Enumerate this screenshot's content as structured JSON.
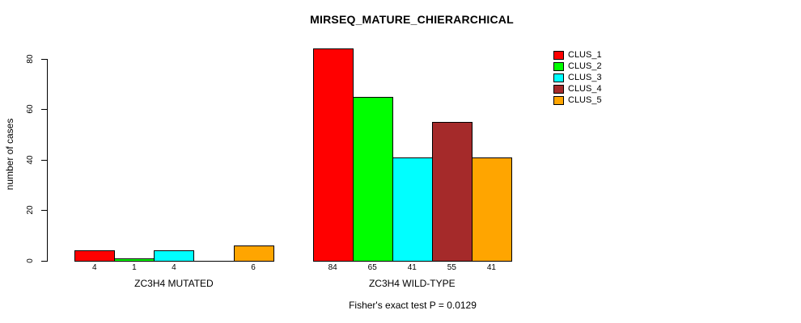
{
  "chart_data": {
    "type": "bar",
    "title": "MIRSEQ_MATURE_CHIERARCHICAL",
    "ylabel": "number of cases",
    "xlabel": "",
    "ylim": [
      0,
      80
    ],
    "yticks": [
      0,
      20,
      40,
      60,
      80
    ],
    "grid": false,
    "legend_position": "top-right",
    "categories": [
      "ZC3H4 MUTATED",
      "ZC3H4 WILD-TYPE"
    ],
    "series": [
      {
        "name": "CLUS_1",
        "color": "#FF0000",
        "values": [
          4,
          84
        ]
      },
      {
        "name": "CLUS_2",
        "color": "#00FF00",
        "values": [
          1,
          65
        ]
      },
      {
        "name": "CLUS_3",
        "color": "#00FFFF",
        "values": [
          4,
          41
        ]
      },
      {
        "name": "CLUS_4",
        "color": "#A52A2A",
        "values": [
          0,
          55
        ]
      },
      {
        "name": "CLUS_5",
        "color": "#FFA500",
        "values": [
          6,
          41
        ]
      }
    ],
    "bar_value_labels": [
      [
        "4",
        "1",
        "4",
        "",
        "6"
      ],
      [
        "84",
        "65",
        "41",
        "55",
        "41"
      ]
    ],
    "annotation": "Fisher's exact test P = 0.0129"
  }
}
